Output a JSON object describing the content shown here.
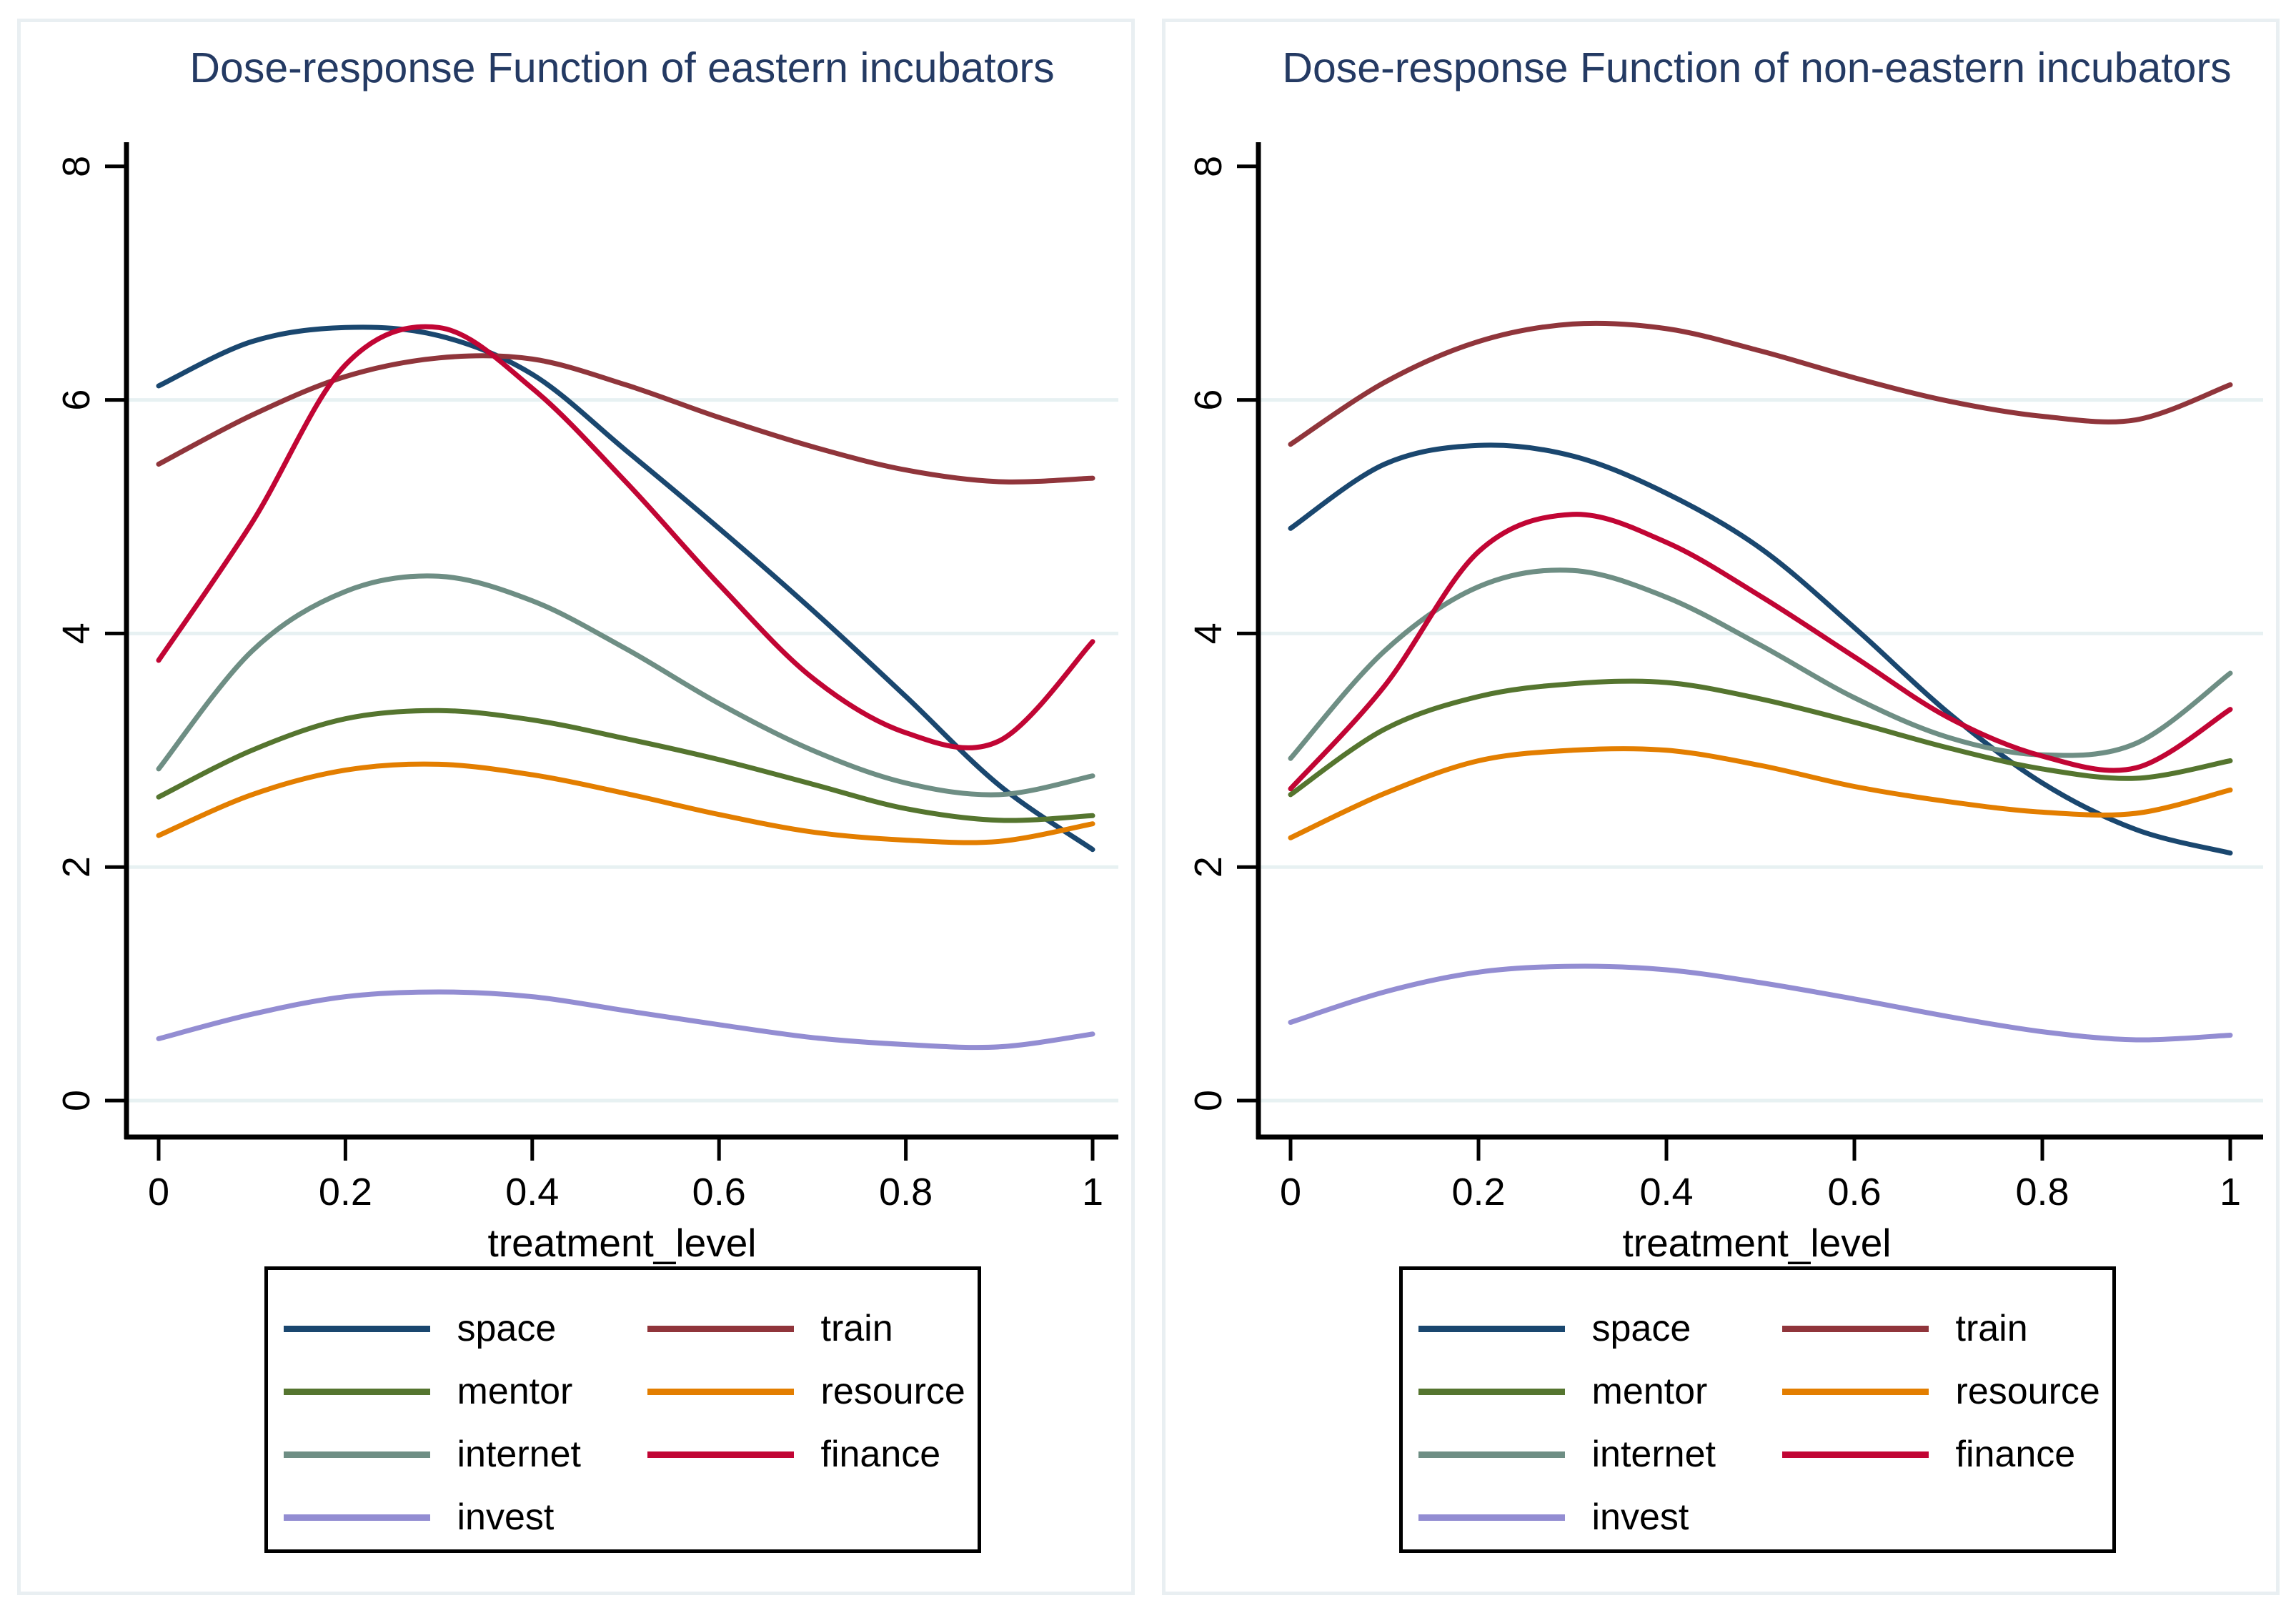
{
  "figure": {
    "background": "#ffffff",
    "panel_border_color": "#e9eff2",
    "grid_color": "#e7f1f2",
    "axis_color": "#000000",
    "title_color": "#243a63",
    "legend_border_color": "#000000"
  },
  "chart_data": [
    {
      "type": "line",
      "title": "Dose-response Function of eastern incubators",
      "xlabel": "treatment_level",
      "ylabel": "",
      "xlim": [
        0,
        1
      ],
      "ylim": [
        0,
        8
      ],
      "xticks": [
        0,
        0.2,
        0.4,
        0.6,
        0.8,
        1
      ],
      "xtick_labels": [
        "0",
        "0.2",
        "0.4",
        "0.6",
        "0.8",
        "1"
      ],
      "yticks": [
        0,
        2,
        4,
        6,
        8
      ],
      "ytick_labels": [
        "0",
        "2",
        "4",
        "6",
        "8"
      ],
      "grid_at": [
        0,
        2,
        4,
        6
      ],
      "grid": true,
      "legend_position": "bottom",
      "legend_columns": 2,
      "x": [
        0,
        0.1,
        0.2,
        0.3,
        0.4,
        0.5,
        0.6,
        0.7,
        0.8,
        0.9,
        1.0
      ],
      "series": [
        {
          "name": "space",
          "color": "#1a476f",
          "values": [
            6.12,
            6.5,
            6.62,
            6.55,
            6.22,
            5.57,
            4.9,
            4.2,
            3.46,
            2.7,
            2.15
          ]
        },
        {
          "name": "train",
          "color": "#90353b",
          "values": [
            5.45,
            5.87,
            6.2,
            6.36,
            6.35,
            6.13,
            5.85,
            5.6,
            5.4,
            5.3,
            5.33
          ]
        },
        {
          "name": "mentor",
          "color": "#55752f",
          "values": [
            2.6,
            3.0,
            3.27,
            3.34,
            3.26,
            3.1,
            2.92,
            2.71,
            2.5,
            2.4,
            2.44
          ]
        },
        {
          "name": "resource",
          "color": "#e37e00",
          "values": [
            2.27,
            2.62,
            2.83,
            2.88,
            2.79,
            2.63,
            2.45,
            2.3,
            2.23,
            2.22,
            2.37
          ]
        },
        {
          "name": "internet",
          "color": "#6e8e84",
          "values": [
            2.84,
            3.85,
            4.36,
            4.49,
            4.28,
            3.87,
            3.4,
            3.0,
            2.72,
            2.62,
            2.78
          ]
        },
        {
          "name": "finance",
          "color": "#c10534",
          "values": [
            3.77,
            4.95,
            6.3,
            6.62,
            6.1,
            5.3,
            4.42,
            3.62,
            3.15,
            3.08,
            3.93
          ]
        },
        {
          "name": "invest",
          "color": "#938dd2",
          "values": [
            0.53,
            0.74,
            0.89,
            0.93,
            0.89,
            0.77,
            0.65,
            0.54,
            0.48,
            0.46,
            0.57
          ]
        }
      ]
    },
    {
      "type": "line",
      "title": "Dose-response Function of non-eastern incubators",
      "xlabel": "treatment_level",
      "ylabel": "",
      "xlim": [
        0,
        1
      ],
      "ylim": [
        0,
        8
      ],
      "xticks": [
        0,
        0.2,
        0.4,
        0.6,
        0.8,
        1
      ],
      "xtick_labels": [
        "0",
        "0.2",
        "0.4",
        "0.6",
        "0.8",
        "1"
      ],
      "yticks": [
        0,
        2,
        4,
        6,
        8
      ],
      "ytick_labels": [
        "0",
        "2",
        "4",
        "6",
        "8"
      ],
      "grid_at": [
        0,
        2,
        4,
        6
      ],
      "grid": true,
      "legend_position": "bottom",
      "legend_columns": 2,
      "x": [
        0,
        0.1,
        0.2,
        0.3,
        0.4,
        0.5,
        0.6,
        0.7,
        0.8,
        0.9,
        1.0
      ],
      "series": [
        {
          "name": "space",
          "color": "#1a476f",
          "values": [
            4.9,
            5.45,
            5.61,
            5.52,
            5.2,
            4.73,
            4.05,
            3.32,
            2.72,
            2.32,
            2.12
          ]
        },
        {
          "name": "train",
          "color": "#90353b",
          "values": [
            5.62,
            6.15,
            6.5,
            6.65,
            6.61,
            6.42,
            6.19,
            5.99,
            5.86,
            5.83,
            6.13
          ]
        },
        {
          "name": "mentor",
          "color": "#55752f",
          "values": [
            2.62,
            3.18,
            3.46,
            3.57,
            3.58,
            3.44,
            3.24,
            3.02,
            2.84,
            2.76,
            2.91
          ]
        },
        {
          "name": "resource",
          "color": "#e37e00",
          "values": [
            2.25,
            2.63,
            2.91,
            3.0,
            3.0,
            2.87,
            2.69,
            2.56,
            2.47,
            2.46,
            2.66
          ]
        },
        {
          "name": "internet",
          "color": "#6e8e84",
          "values": [
            2.93,
            3.85,
            4.4,
            4.54,
            4.31,
            3.9,
            3.45,
            3.11,
            2.96,
            3.06,
            3.66
          ]
        },
        {
          "name": "finance",
          "color": "#c10534",
          "values": [
            2.67,
            3.55,
            4.7,
            5.02,
            4.78,
            4.32,
            3.8,
            3.28,
            2.95,
            2.85,
            3.35
          ]
        },
        {
          "name": "invest",
          "color": "#938dd2",
          "values": [
            0.67,
            0.93,
            1.1,
            1.15,
            1.12,
            1.01,
            0.87,
            0.72,
            0.59,
            0.52,
            0.56
          ]
        }
      ]
    }
  ]
}
